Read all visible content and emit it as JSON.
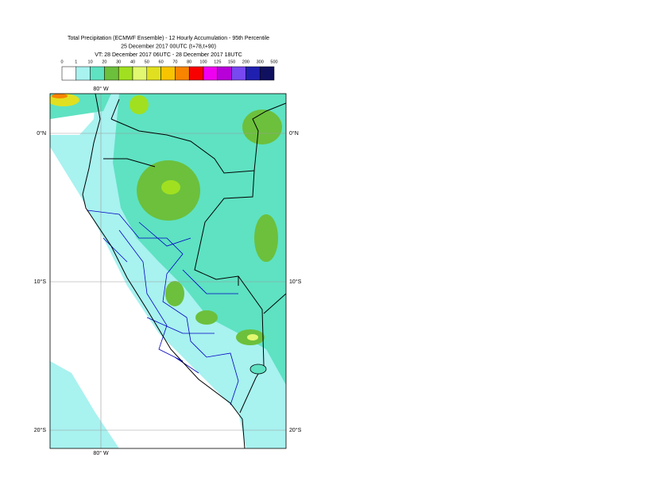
{
  "header": {
    "title_lines": [
      "Total Precipitation (ECMWF Ensemble) - 12 Hourly Accumulation - 95th Percentile",
      "25 December 2017 00UTC (t+78,t+90)",
      "VT: 28 December 2017 06UTC - 28 December 2017 18UTC"
    ]
  },
  "legend": {
    "labels": [
      "0",
      "1",
      "10",
      "20",
      "30",
      "40",
      "50",
      "60",
      "70",
      "80",
      "100",
      "125",
      "150",
      "200",
      "300",
      "500"
    ],
    "colors": [
      "#ffffff",
      "#a8f2f0",
      "#5ee2c2",
      "#6cc03c",
      "#a0e020",
      "#e2f870",
      "#e0e020",
      "#f8c400",
      "#f88400",
      "#f80000",
      "#f000f0",
      "#b800d8",
      "#7848f0",
      "#2020b0",
      "#101060"
    ]
  },
  "map": {
    "lon_labels_top": [
      "80° W"
    ],
    "lon_labels_bottom": [
      "80° W"
    ],
    "lat_labels_left": [
      "0°N",
      "10°S",
      "20°S"
    ],
    "lat_labels_right": [
      "0°N",
      "10°S",
      "20°S"
    ]
  }
}
